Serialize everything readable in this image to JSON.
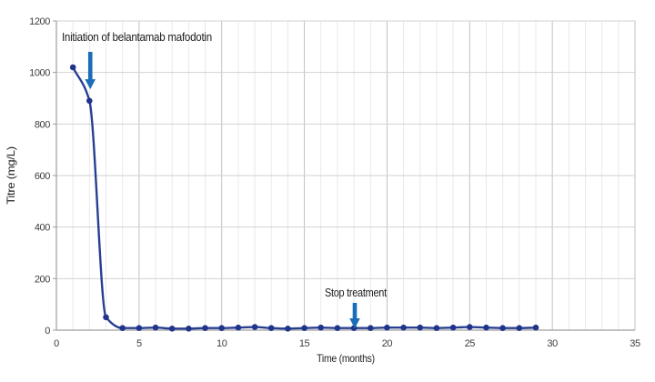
{
  "chart_data": {
    "type": "line",
    "title": "",
    "xlabel": "Time (months)",
    "ylabel": "Titre (mg/L)",
    "xlim": [
      0,
      35
    ],
    "ylim": [
      0,
      1200
    ],
    "x_ticks": [
      0,
      5,
      10,
      15,
      20,
      25,
      30,
      35
    ],
    "y_ticks": [
      0,
      200,
      400,
      600,
      800,
      1000,
      1200
    ],
    "x_minor_step": 1,
    "grid": true,
    "legend": "none",
    "series": [
      {
        "name": "titre",
        "x": [
          1,
          2,
          3,
          4,
          5,
          6,
          7,
          8,
          9,
          10,
          11,
          12,
          13,
          14,
          15,
          16,
          17,
          18,
          19,
          20,
          21,
          22,
          23,
          24,
          25,
          26,
          27,
          28,
          29
        ],
        "y": [
          1020,
          890,
          50,
          8,
          8,
          10,
          6,
          6,
          8,
          8,
          10,
          12,
          8,
          6,
          8,
          10,
          8,
          8,
          8,
          10,
          10,
          10,
          8,
          10,
          12,
          10,
          8,
          8,
          10
        ],
        "marker": "circle"
      }
    ],
    "annotations": [
      {
        "id": "initiation",
        "label": "Initiation of belantamab mafodotin",
        "text_x": 0.33,
        "text_y": 1122,
        "align": "start",
        "arrow_x": 2.05,
        "arrow_tail_y": 1080,
        "arrow_tip_y": 935
      },
      {
        "id": "stop",
        "label": "Stop treatment",
        "text_x": 18.1,
        "text_y": 130,
        "align": "middle",
        "arrow_x": 18.05,
        "arrow_tail_y": 106,
        "arrow_tip_y": 7
      }
    ],
    "colors": {
      "line": "#273f93",
      "marker": "#20358a",
      "arrow": "#1a6db8",
      "grid_minor": "#e9e9e9",
      "grid_major_v": "#c2c2c2",
      "grid_h": "#d2d2d2",
      "axis": "#9e9e9e",
      "background": "#ffffff"
    }
  }
}
